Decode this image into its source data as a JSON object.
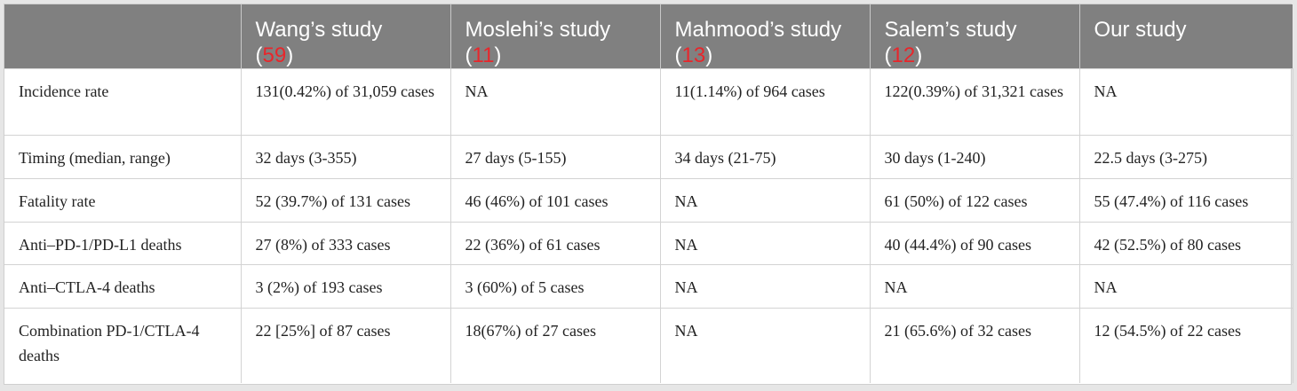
{
  "colors": {
    "header_bg": "#808080",
    "header_text": "#ffffff",
    "reference": "#e8262b"
  },
  "header": [
    {
      "name": "Wang’s study",
      "ref": "59"
    },
    {
      "name": "Moslehi’s study",
      "ref": "11"
    },
    {
      "name": "Mahmood’s study",
      "ref": "13"
    },
    {
      "name": "Salem’s study",
      "ref": "12"
    },
    {
      "name": "Our study",
      "ref": ""
    }
  ],
  "rows": [
    {
      "label": "Incidence rate",
      "cells": [
        "131(0.42%) of 31,059 cases",
        "NA",
        "11(1.14%) of 964 cases",
        "122(0.39%) of 31,321 cases",
        "NA"
      ]
    },
    {
      "label": "Timing (median, range)",
      "cells": [
        "32 days (3-355)",
        "27 days (5-155)",
        "34 days (21-75)",
        "30 days (1-240)",
        "22.5 days (3-275)"
      ]
    },
    {
      "label": "Fatality rate",
      "cells": [
        "52 (39.7%) of 131 cases",
        "46 (46%) of 101 cases",
        "NA",
        "61 (50%) of 122 cases",
        "55 (47.4%) of 116 cases"
      ]
    },
    {
      "label": "Anti–PD-1/PD-L1 deaths",
      "cells": [
        "27 (8%) of 333 cases",
        "22 (36%) of 61 cases",
        "NA",
        "40 (44.4%) of 90 cases",
        "42 (52.5%) of 80 cases"
      ]
    },
    {
      "label": "Anti–CTLA-4 deaths",
      "cells": [
        "3 (2%) of 193 cases",
        "3 (60%) of 5 cases",
        "NA",
        "NA",
        "NA"
      ]
    },
    {
      "label": "Combination PD-1/CTLA-4 deaths",
      "cells": [
        "22 [25%] of 87 cases",
        "18(67%) of 27 cases",
        "NA",
        "21 (65.6%) of 32 cases",
        "12 (54.5%) of 22 cases"
      ]
    }
  ]
}
